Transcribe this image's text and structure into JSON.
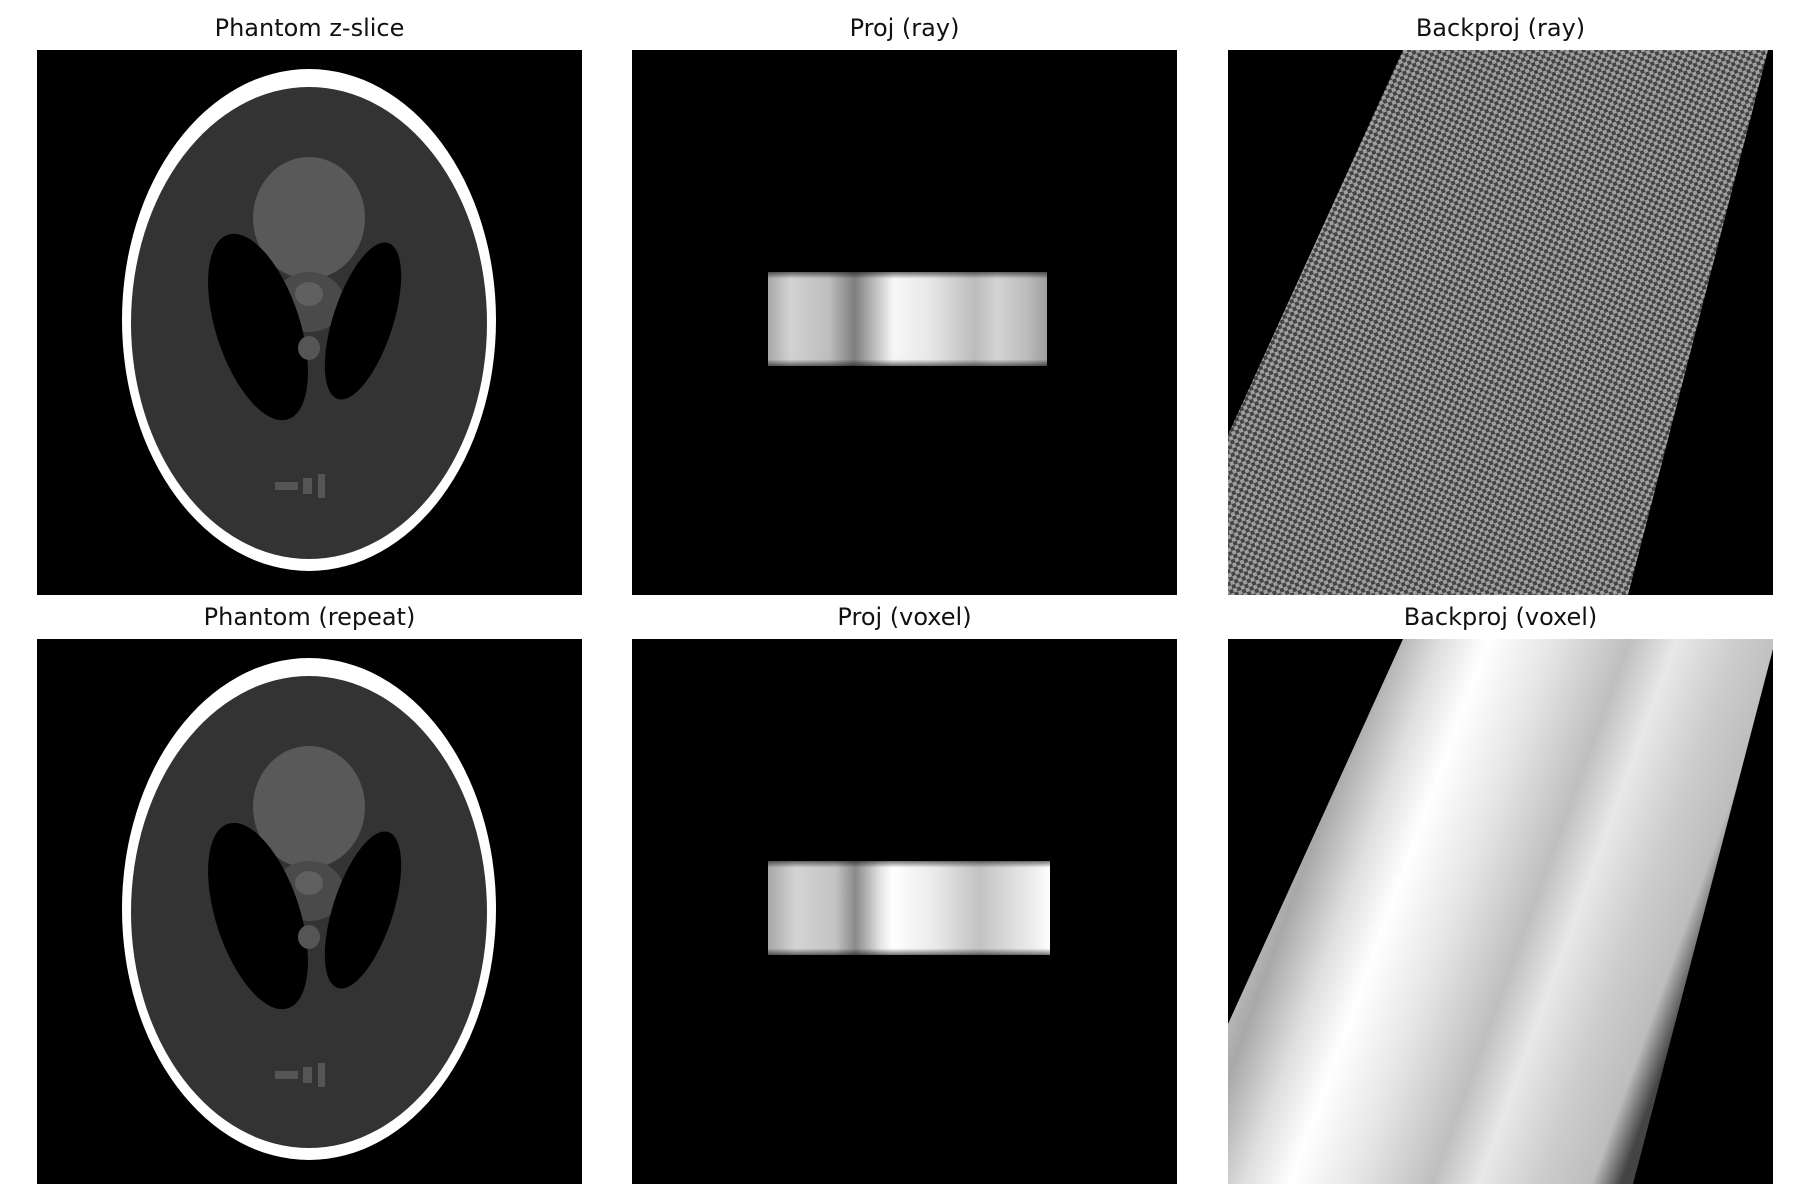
{
  "figure": {
    "panels": [
      {
        "id": "phantom-z-slice",
        "title": "Phantom z-slice",
        "kind": "phantom"
      },
      {
        "id": "proj-ray",
        "title": "Proj (ray)",
        "kind": "projection"
      },
      {
        "id": "backproj-ray",
        "title": "Backproj (ray)",
        "kind": "backprojection-ray"
      },
      {
        "id": "phantom-repeat",
        "title": "Phantom (repeat)",
        "kind": "phantom"
      },
      {
        "id": "proj-voxel",
        "title": "Proj (voxel)",
        "kind": "projection"
      },
      {
        "id": "backproj-voxel",
        "title": "Backproj (voxel)",
        "kind": "backprojection-voxel"
      }
    ],
    "colormap": "gray",
    "colors": {
      "background": "#000000",
      "figure_bg": "#ffffff",
      "title_text": "#111111"
    }
  }
}
